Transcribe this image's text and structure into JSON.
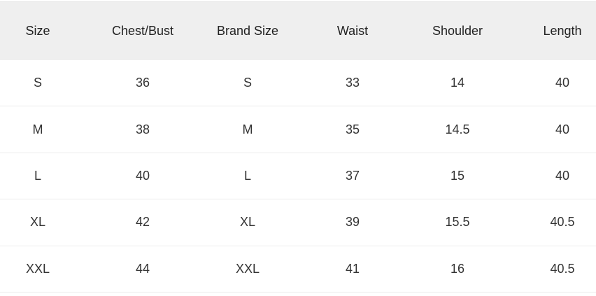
{
  "table": {
    "headers": [
      "Size",
      "Chest/Bust",
      "Brand Size",
      "Waist",
      "Shoulder",
      "Length"
    ],
    "rows": [
      [
        "S",
        "36",
        "S",
        "33",
        "14",
        "40"
      ],
      [
        "M",
        "38",
        "M",
        "35",
        "14.5",
        "40"
      ],
      [
        "L",
        "40",
        "L",
        "37",
        "15",
        "40"
      ],
      [
        "XL",
        "42",
        "XL",
        "39",
        "15.5",
        "40.5"
      ],
      [
        "XXL",
        "44",
        "XXL",
        "41",
        "16",
        "40.5"
      ]
    ]
  }
}
